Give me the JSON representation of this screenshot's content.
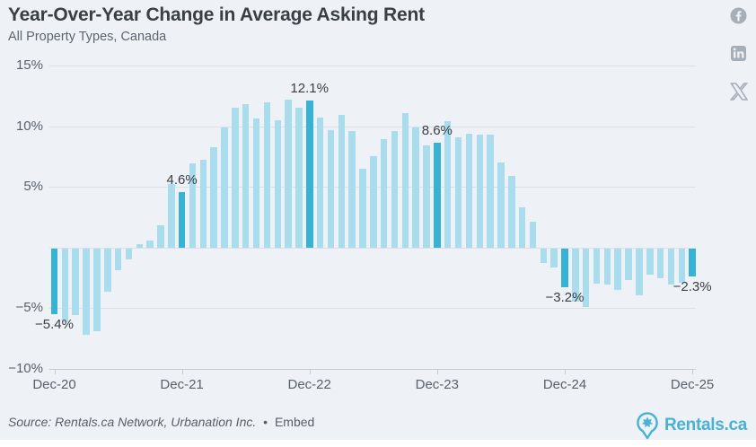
{
  "header": {
    "title": "Year-Over-Year Change in Average Asking Rent",
    "subtitle": "All Property Types, Canada"
  },
  "social": [
    {
      "name": "facebook",
      "glyph": "f"
    },
    {
      "name": "linkedin",
      "glyph": "in"
    },
    {
      "name": "x-twitter",
      "glyph": "X"
    }
  ],
  "chart_data": {
    "type": "bar",
    "title": "Year-Over-Year Change in Average Asking Rent",
    "subtitle": "All Property Types, Canada",
    "unit": "%",
    "x": [
      "Dec-20",
      "Jan-21",
      "Feb-21",
      "Mar-21",
      "Apr-21",
      "May-21",
      "Jun-21",
      "Jul-21",
      "Aug-21",
      "Sep-21",
      "Oct-21",
      "Nov-21",
      "Dec-21",
      "Jan-22",
      "Feb-22",
      "Mar-22",
      "Apr-22",
      "May-22",
      "Jun-22",
      "Jul-22",
      "Aug-22",
      "Sep-22",
      "Oct-22",
      "Nov-22",
      "Dec-22",
      "Jan-23",
      "Feb-23",
      "Mar-23",
      "Apr-23",
      "May-23",
      "Jun-23",
      "Jul-23",
      "Aug-23",
      "Sep-23",
      "Oct-23",
      "Nov-23",
      "Dec-23",
      "Jan-24",
      "Feb-24",
      "Mar-24",
      "Apr-24",
      "May-24",
      "Jun-24",
      "Jul-24",
      "Aug-24",
      "Sep-24",
      "Oct-24",
      "Nov-24",
      "Dec-24",
      "Jan-25",
      "Feb-25",
      "Mar-25",
      "Apr-25",
      "May-25",
      "Jun-25",
      "Jul-25",
      "Aug-25",
      "Sep-25",
      "Oct-25",
      "Nov-25",
      "Dec-25"
    ],
    "values": [
      -5.4,
      -6.1,
      -5.5,
      -7.1,
      -6.8,
      -3.6,
      -1.8,
      -0.9,
      0.3,
      0.6,
      1.8,
      5.2,
      4.6,
      6.9,
      7.2,
      8.3,
      9.9,
      11.5,
      11.8,
      10.6,
      12.0,
      10.5,
      12.2,
      11.5,
      12.1,
      10.7,
      9.7,
      10.9,
      9.6,
      6.5,
      7.5,
      8.9,
      9.6,
      11.1,
      9.9,
      8.4,
      8.6,
      10.4,
      9.1,
      9.4,
      9.3,
      9.3,
      7.0,
      5.9,
      3.3,
      2.1,
      -1.2,
      -1.6,
      -3.2,
      -4.4,
      -4.8,
      -2.9,
      -3.0,
      -3.4,
      -2.6,
      -3.9,
      -2.2,
      -2.5,
      -3.0,
      -2.8,
      -2.3
    ],
    "highlighted": [
      "Dec-20",
      "Dec-21",
      "Dec-22",
      "Dec-23",
      "Dec-24",
      "Dec-25"
    ],
    "annotations": [
      {
        "month": "Dec-20",
        "text": "−5.4%"
      },
      {
        "month": "Dec-21",
        "text": "4.6%"
      },
      {
        "month": "Dec-22",
        "text": "12.1%"
      },
      {
        "month": "Dec-23",
        "text": "8.6%"
      },
      {
        "month": "Dec-24",
        "text": "−3.2%"
      },
      {
        "month": "Dec-25",
        "text": "−2.3%"
      }
    ],
    "y_ticks": [
      {
        "value": 15,
        "label": "15%"
      },
      {
        "value": 10,
        "label": "10%"
      },
      {
        "value": 5,
        "label": "5%"
      },
      {
        "value": -5,
        "label": "−5%"
      },
      {
        "value": -10,
        "label": "−10%"
      }
    ],
    "x_ticks": [
      "Dec-20",
      "Dec-21",
      "Dec-22",
      "Dec-23",
      "Dec-24",
      "Dec-25"
    ],
    "ylim": [
      -10,
      15
    ],
    "grid": true,
    "legend": "none",
    "colors": {
      "bar": "#a9dcec",
      "highlight": "#35b2d5"
    }
  },
  "footer": {
    "source": "Source: Rentals.ca Network, Urbanation Inc.",
    "separator": "•",
    "embed_label": "Embed",
    "logo_text": "Rentals.ca"
  }
}
